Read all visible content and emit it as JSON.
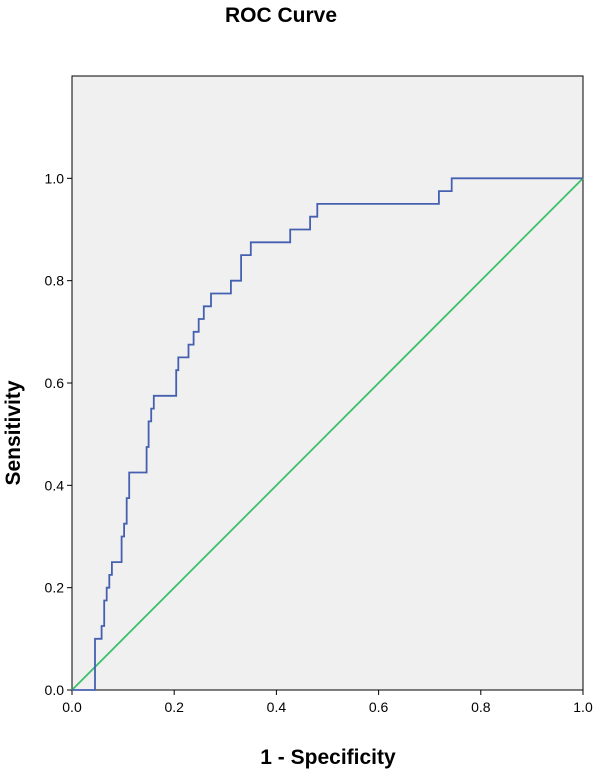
{
  "chart_data": {
    "type": "line",
    "title": "ROC Curve",
    "xlabel": "1 - Specificity",
    "ylabel": "Sensitivity",
    "xlim": [
      0,
      1
    ],
    "ylim": [
      0,
      1.2
    ],
    "xticks": [
      "0.0",
      "0.2",
      "0.4",
      "0.6",
      "0.8",
      "1.0"
    ],
    "yticks": [
      "0.0",
      "0.2",
      "0.4",
      "0.6",
      "0.8",
      "1.0"
    ],
    "grid": false,
    "legend": "none",
    "colors": {
      "plot_background": "#f0f0f0",
      "roc_curve": "#4560b0",
      "reference_line": "#3cc06a"
    },
    "series": [
      {
        "x": [
          0,
          0.045,
          0.045,
          0.058,
          0.058,
          0.063,
          0.063,
          0.068,
          0.068,
          0.073,
          0.073,
          0.078,
          0.078,
          0.097,
          0.097,
          0.102,
          0.102,
          0.107,
          0.107,
          0.112,
          0.112,
          0.146,
          0.146,
          0.15,
          0.15,
          0.155,
          0.155,
          0.16,
          0.16,
          0.204,
          0.204,
          0.208,
          0.208,
          0.214,
          0.214,
          0.228,
          0.228,
          0.238,
          0.238,
          0.248,
          0.248,
          0.258,
          0.258,
          0.263,
          0.263,
          0.272,
          0.272,
          0.282,
          0.282,
          0.311,
          0.311,
          0.331,
          0.331,
          0.35,
          0.35,
          0.427,
          0.427,
          0.466,
          0.466,
          0.48,
          0.48,
          0.495,
          0.495,
          0.718,
          0.718,
          0.743,
          0.743,
          1.0
        ],
        "y": [
          0,
          0,
          0.1,
          0.1,
          0.125,
          0.125,
          0.175,
          0.175,
          0.2,
          0.2,
          0.225,
          0.225,
          0.25,
          0.25,
          0.3,
          0.3,
          0.325,
          0.325,
          0.375,
          0.375,
          0.425,
          0.425,
          0.475,
          0.475,
          0.525,
          0.525,
          0.55,
          0.55,
          0.575,
          0.575,
          0.625,
          0.625,
          0.65,
          0.65,
          0.65,
          0.65,
          0.675,
          0.675,
          0.7,
          0.7,
          0.725,
          0.725,
          0.75,
          0.75,
          0.75,
          0.75,
          0.775,
          0.775,
          0.775,
          0.775,
          0.8,
          0.8,
          0.85,
          0.85,
          0.875,
          0.875,
          0.9,
          0.9,
          0.925,
          0.925,
          0.95,
          0.95,
          0.95,
          0.95,
          0.975,
          0.975,
          1.0,
          1.0
        ]
      },
      {
        "x": [
          0,
          1
        ],
        "y": [
          0,
          1
        ]
      }
    ]
  }
}
